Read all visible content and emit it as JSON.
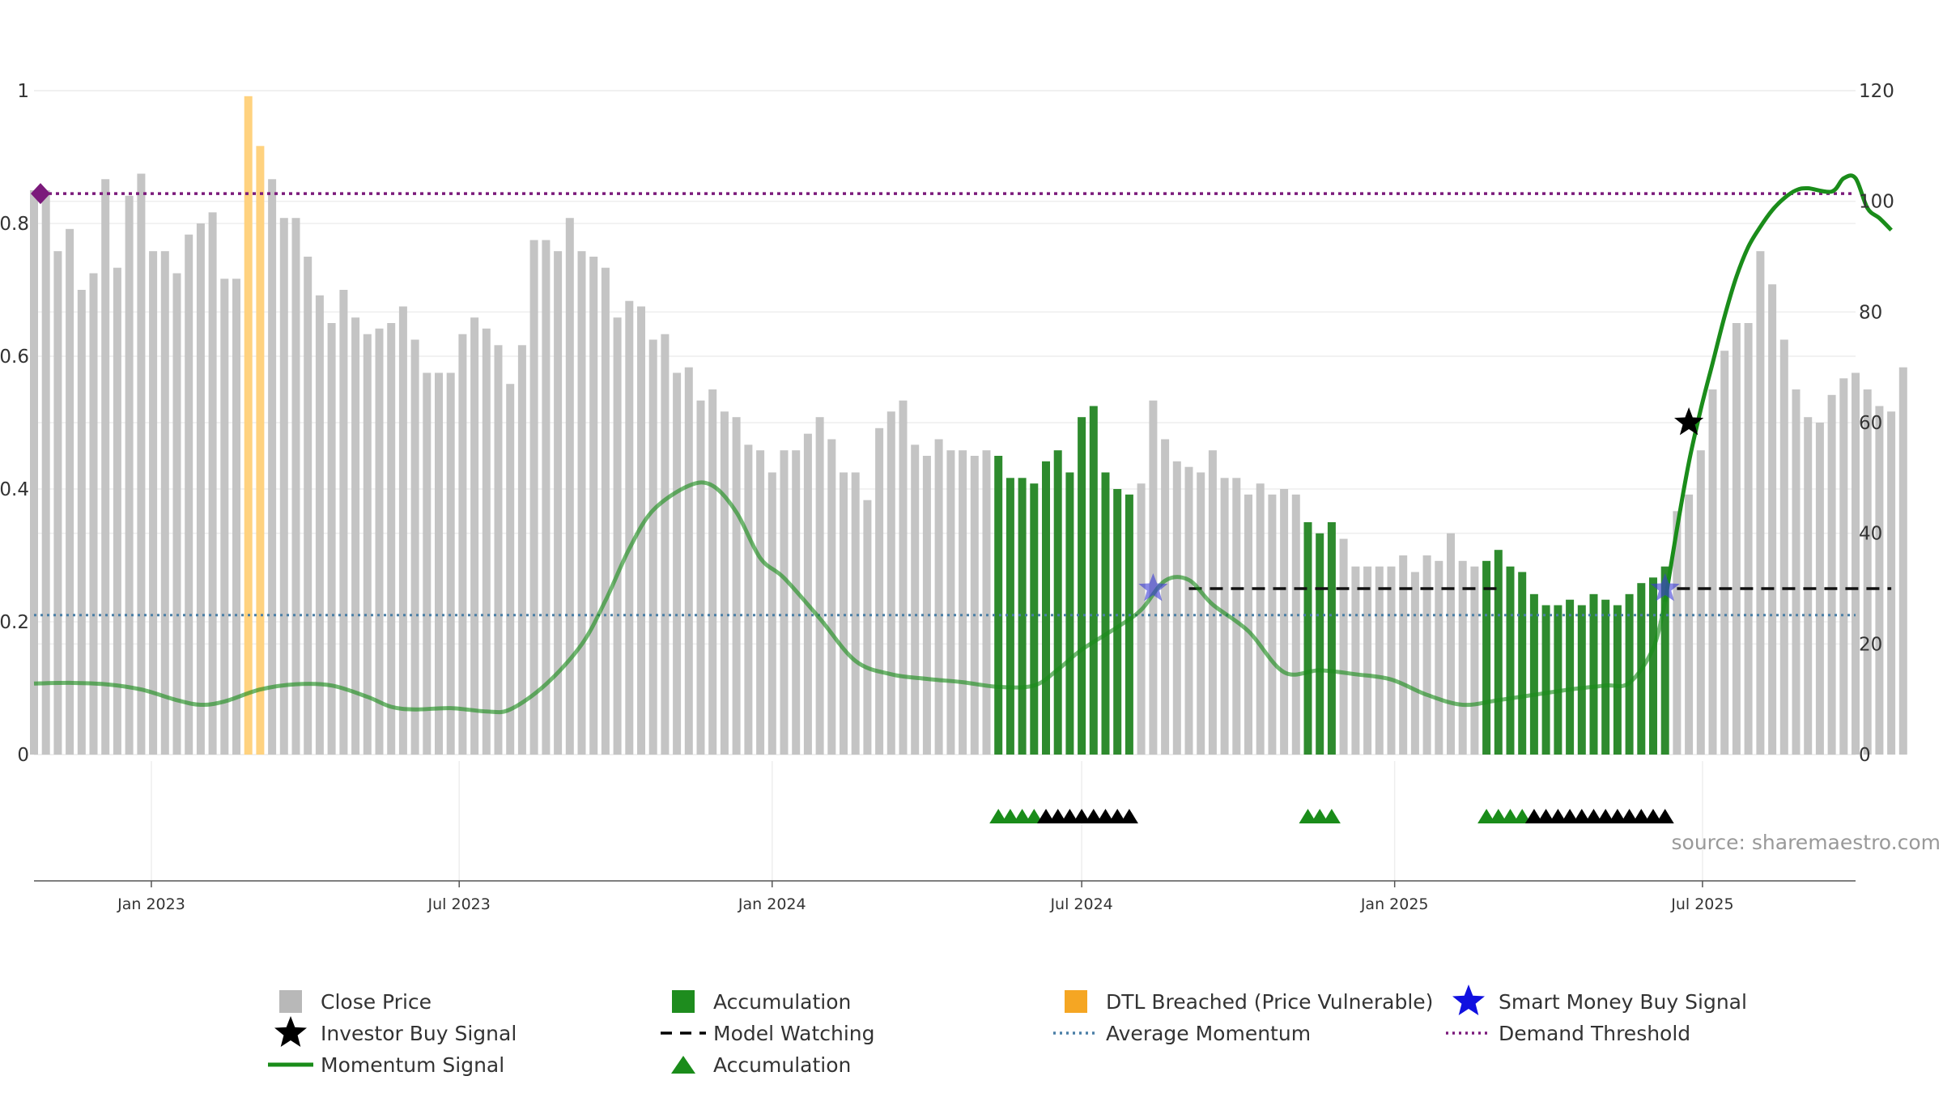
{
  "chart_data": {
    "type": "bar",
    "title": "",
    "source": "source: sharemaestro.com",
    "left_axis": {
      "range": [
        0,
        1
      ],
      "ticks": [
        0,
        0.2,
        0.4,
        0.6,
        0.8,
        1
      ],
      "tick_labels": [
        "0",
        "0.2",
        "0.4",
        "0.6",
        "0.8",
        "1"
      ]
    },
    "right_axis": {
      "range": [
        0,
        120
      ],
      "ticks": [
        0,
        20,
        40,
        60,
        80,
        100,
        120
      ],
      "tick_labels": [
        "0",
        "20",
        "40",
        "60",
        "80",
        "100",
        "120"
      ]
    },
    "x_axis": {
      "start": "2022-10-24",
      "end": "2025-09-29",
      "ticks": [
        {
          "date": "2023-01-01",
          "label": "Jan 2023"
        },
        {
          "date": "2023-07-01",
          "label": "Jul 2023"
        },
        {
          "date": "2024-01-01",
          "label": "Jan 2024"
        },
        {
          "date": "2024-07-01",
          "label": "Jul 2024"
        },
        {
          "date": "2025-01-01",
          "label": "Jan 2025"
        },
        {
          "date": "2025-07-01",
          "label": "Jul 2025"
        }
      ]
    },
    "close_price": {
      "name": "Close Price",
      "start_date": "2022-10-24",
      "interval_days": 7,
      "values": [
        102,
        102,
        91,
        95,
        84,
        87,
        104,
        88,
        101,
        105,
        91,
        91,
        87,
        94,
        96,
        98,
        86,
        86,
        119,
        110,
        104,
        97,
        97,
        90,
        83,
        78,
        84,
        79,
        76,
        77,
        78,
        81,
        75,
        69,
        69,
        69,
        76,
        79,
        77,
        74,
        67,
        74,
        93,
        93,
        91,
        97,
        91,
        90,
        88,
        79,
        82,
        81,
        75,
        76,
        69,
        70,
        64,
        66,
        62,
        61,
        56,
        55,
        51,
        55,
        55,
        58,
        61,
        57,
        51,
        51,
        46,
        59,
        62,
        64,
        56,
        54,
        57,
        55,
        55,
        54,
        55,
        54,
        50,
        50,
        49,
        53,
        55,
        51,
        61,
        63,
        51,
        48,
        47,
        49,
        64,
        57,
        53,
        52,
        51,
        55,
        50,
        50,
        47,
        49,
        47,
        48,
        47,
        42,
        40,
        42,
        39,
        34,
        34,
        34,
        34,
        36,
        33,
        36,
        35,
        40,
        35,
        34,
        35,
        37,
        34,
        33,
        29,
        27,
        27,
        28,
        27,
        29,
        28,
        27,
        29,
        31,
        32,
        34,
        44,
        47,
        55,
        66,
        73,
        78,
        78,
        91,
        85,
        75,
        66,
        61,
        60,
        65,
        68,
        69,
        66,
        63,
        62,
        70
      ],
      "color": "#c4c4c4"
    },
    "accumulation_bars": {
      "name": "Accumulation",
      "index_ranges": [
        [
          81,
          92
        ],
        [
          107,
          109
        ],
        [
          122,
          137
        ]
      ],
      "color": "#2e8b2e"
    },
    "dtl_breached_bars": {
      "name": "DTL Breached (Price Vulnerable)",
      "indices": [
        18,
        19
      ],
      "color": "#ffd27f"
    },
    "momentum_signal": {
      "name": "Momentum Signal",
      "points": [
        [
          0,
          0.107
        ],
        [
          3,
          0.108
        ],
        [
          6,
          0.106
        ],
        [
          9,
          0.098
        ],
        [
          12,
          0.082
        ],
        [
          14,
          0.075
        ],
        [
          16,
          0.08
        ],
        [
          19,
          0.098
        ],
        [
          22,
          0.106
        ],
        [
          25,
          0.104
        ],
        [
          28,
          0.087
        ],
        [
          30,
          0.072
        ],
        [
          32,
          0.068
        ],
        [
          35,
          0.07
        ],
        [
          38,
          0.065
        ],
        [
          40,
          0.068
        ],
        [
          43,
          0.106
        ],
        [
          46,
          0.166
        ],
        [
          48,
          0.232
        ],
        [
          50,
          0.31
        ],
        [
          52,
          0.368
        ],
        [
          55,
          0.405
        ],
        [
          57,
          0.405
        ],
        [
          59,
          0.365
        ],
        [
          61,
          0.296
        ],
        [
          63,
          0.266
        ],
        [
          66,
          0.205
        ],
        [
          69,
          0.141
        ],
        [
          72,
          0.121
        ],
        [
          75,
          0.114
        ],
        [
          78,
          0.109
        ],
        [
          81,
          0.102
        ],
        [
          84,
          0.104
        ],
        [
          86,
          0.128
        ],
        [
          88,
          0.158
        ],
        [
          91,
          0.192
        ],
        [
          93,
          0.218
        ],
        [
          95,
          0.262
        ],
        [
          97,
          0.263
        ],
        [
          99,
          0.226
        ],
        [
          102,
          0.186
        ],
        [
          105,
          0.124
        ],
        [
          108,
          0.127
        ],
        [
          111,
          0.121
        ],
        [
          114,
          0.113
        ],
        [
          117,
          0.09
        ],
        [
          120,
          0.075
        ],
        [
          123,
          0.082
        ],
        [
          126,
          0.09
        ],
        [
          129,
          0.098
        ],
        [
          132,
          0.104
        ],
        [
          134,
          0.108
        ],
        [
          136,
          0.16
        ],
        [
          137,
          0.23
        ],
        [
          138,
          0.34
        ],
        [
          139,
          0.44
        ],
        [
          140,
          0.52
        ],
        [
          141,
          0.59
        ],
        [
          142,
          0.66
        ],
        [
          143,
          0.72
        ],
        [
          144,
          0.765
        ],
        [
          145,
          0.795
        ],
        [
          146,
          0.82
        ],
        [
          147,
          0.838
        ],
        [
          148,
          0.85
        ],
        [
          149,
          0.853
        ],
        [
          151,
          0.848
        ],
        [
          152,
          0.868
        ],
        [
          153,
          0.868
        ],
        [
          154,
          0.823
        ],
        [
          155,
          0.808
        ],
        [
          156,
          0.79
        ]
      ],
      "opaque_from_index": 137,
      "color": "#1a8c1a"
    },
    "demand_threshold": {
      "name": "Demand Threshold",
      "value": 0.845,
      "color": "#7b1a7b"
    },
    "average_momentum": {
      "name": "Average Momentum",
      "value": 0.21,
      "color": "#4a7fa6"
    },
    "model_watching": {
      "name": "Model Watching",
      "segments": [
        [
          97,
          123
        ],
        [
          138,
          156
        ]
      ],
      "value": 0.25
    },
    "investor_buy_signals": {
      "name": "Investor Buy Signal",
      "points": [
        [
          139,
          0.5
        ]
      ]
    },
    "smart_money_buy_signals": {
      "name": "Smart Money Buy Signal",
      "points": [
        [
          94,
          0.25
        ],
        [
          137,
          0.25
        ]
      ],
      "color": "#3b3bd6"
    },
    "accumulation_triangles": {
      "name": "Accumulation",
      "green_indices": [
        81,
        82,
        83,
        84,
        107,
        108,
        109,
        122,
        123,
        124,
        125
      ],
      "black_indices": [
        85,
        86,
        87,
        88,
        89,
        90,
        91,
        92,
        126,
        127,
        128,
        129,
        130,
        131,
        132,
        133,
        134,
        135,
        136,
        137
      ]
    },
    "legend": {
      "placement": "bottom",
      "items": [
        {
          "label": "Close Price",
          "symbol": "square",
          "color": "#b8b8b8"
        },
        {
          "label": "Accumulation",
          "symbol": "square",
          "color": "#1e8c1e"
        },
        {
          "label": "DTL Breached (Price Vulnerable)",
          "symbol": "square",
          "color": "#f5a623"
        },
        {
          "label": "Smart Money Buy Signal",
          "symbol": "star",
          "color": "#1010e0"
        },
        {
          "label": "Investor Buy Signal",
          "symbol": "star",
          "color": "#000000"
        },
        {
          "label": "Model Watching",
          "symbol": "dash",
          "color": "#000000"
        },
        {
          "label": "Average Momentum",
          "symbol": "dot-line",
          "color": "#4a7fa6"
        },
        {
          "label": "Demand Threshold",
          "symbol": "dot-line",
          "color": "#7b1a7b"
        },
        {
          "label": "Momentum Signal",
          "symbol": "line",
          "color": "#1a8c1a"
        },
        {
          "label": "Accumulation",
          "symbol": "triangle",
          "color": "#1a8c1a"
        }
      ]
    }
  }
}
